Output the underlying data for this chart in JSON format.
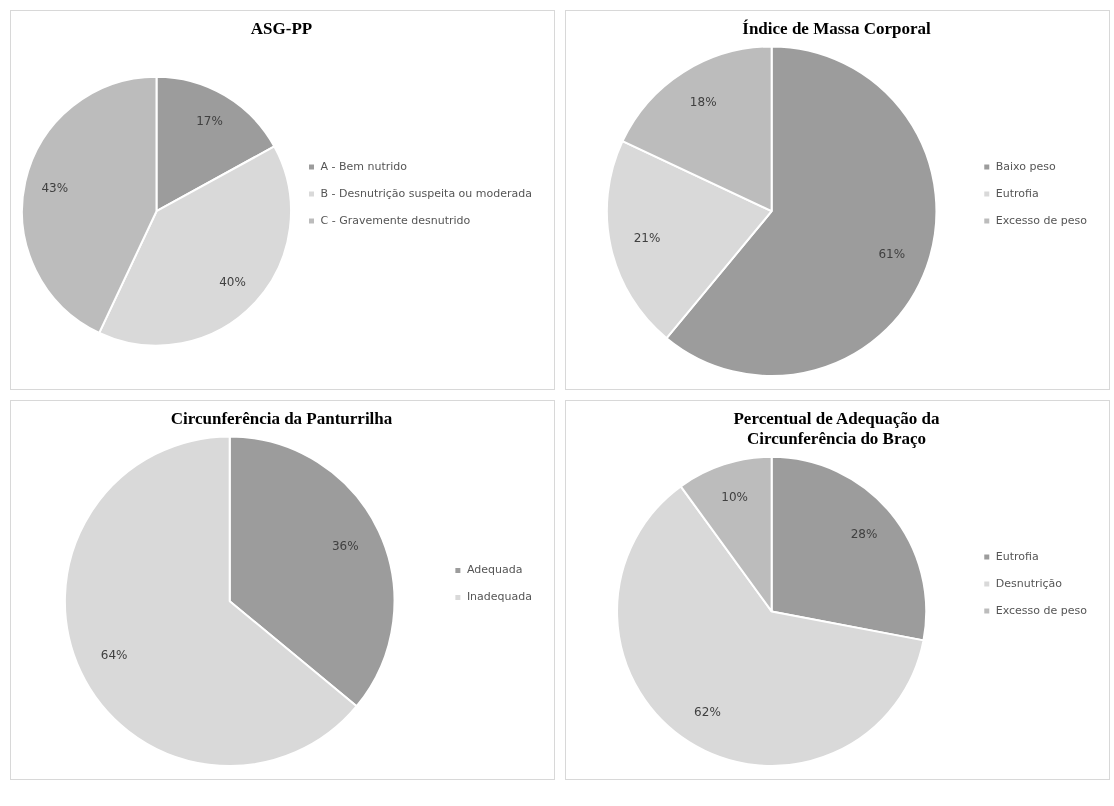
{
  "chart_data": [
    {
      "type": "pie",
      "title": "ASG-PP",
      "categories": [
        "A - Bem nutrido",
        "B - Desnutrição suspeita ou moderada",
        "C - Gravemente desnutrido"
      ],
      "values": [
        17,
        40,
        43
      ],
      "value_labels": [
        "17%",
        "40%",
        "43%"
      ],
      "colors": [
        "#9c9c9c",
        "#d9d9d9",
        "#bcbcbc"
      ],
      "legend": "right"
    },
    {
      "type": "pie",
      "title": "Índice de Massa Corporal",
      "categories": [
        "Baixo peso",
        "Eutrofia",
        "Excesso de peso"
      ],
      "values": [
        61,
        21,
        18
      ],
      "value_labels": [
        "61%",
        "21%",
        "18%"
      ],
      "colors": [
        "#9c9c9c",
        "#d9d9d9",
        "#bcbcbc"
      ],
      "legend": "right"
    },
    {
      "type": "pie",
      "title": "Circunferência da Panturrilha",
      "categories": [
        "Adequada",
        "Inadequada"
      ],
      "values": [
        36,
        64
      ],
      "value_labels": [
        "36%",
        "64%"
      ],
      "colors": [
        "#9c9c9c",
        "#d9d9d9"
      ],
      "legend": "right"
    },
    {
      "type": "pie",
      "title": "Percentual de Adequação da Circunferência do Braço",
      "categories": [
        "Eutrofia",
        "Desnutrição",
        "Excesso de peso"
      ],
      "values": [
        28,
        62,
        10
      ],
      "value_labels": [
        "28%",
        "62%",
        "10%"
      ],
      "colors": [
        "#9c9c9c",
        "#d9d9d9",
        "#bcbcbc"
      ],
      "legend": "right"
    }
  ]
}
